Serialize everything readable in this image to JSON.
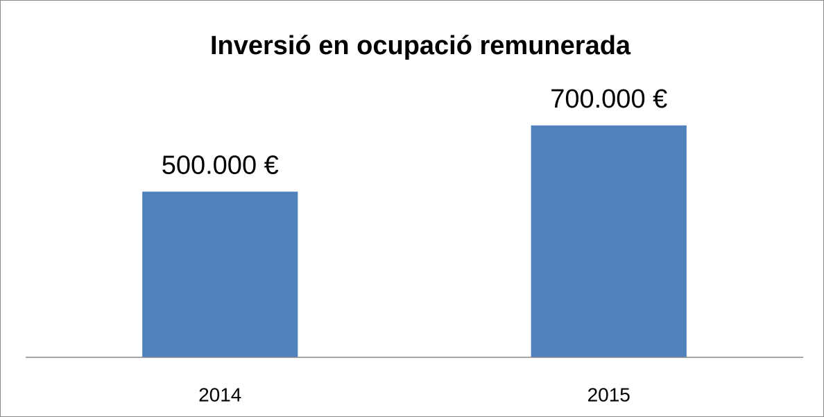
{
  "chart_data": {
    "type": "bar",
    "title": "Inversió en ocupació remunerada",
    "categories": [
      "2014",
      "2015"
    ],
    "values": [
      500000,
      700000
    ],
    "value_labels": [
      "500.000 €",
      "700.000 €"
    ],
    "color": "#4f81bd",
    "ylim": [
      0,
      800000
    ]
  }
}
